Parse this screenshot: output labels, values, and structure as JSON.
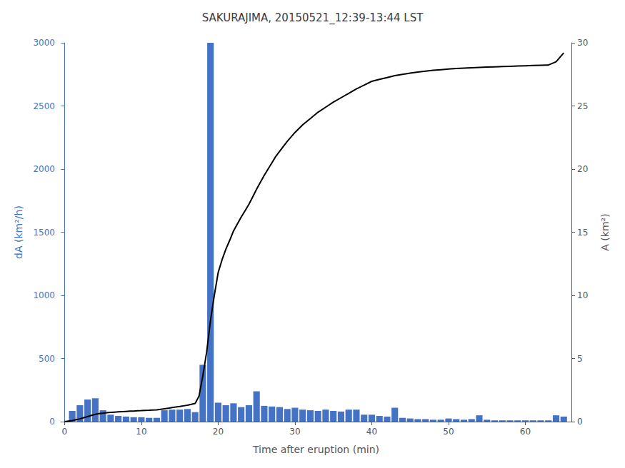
{
  "chart_data": {
    "type": "bar",
    "title": "SAKURAJIMA, 20150521_12:39-13:44 LST",
    "xlabel": "Time after eruption (min)",
    "ylabel": "dA (km²/h)",
    "y2label": "A (km²)",
    "xlim": [
      -0.5,
      66
    ],
    "xticks": [
      0,
      10,
      20,
      30,
      40,
      50,
      60
    ],
    "ylim": [
      0,
      3000
    ],
    "yticks": [
      0,
      500,
      1000,
      1500,
      2000,
      2500,
      3000
    ],
    "y2lim": [
      0,
      30
    ],
    "y2ticks": [
      0,
      5,
      10,
      15,
      20,
      25,
      30
    ],
    "grid": false,
    "series": [
      {
        "type": "bar",
        "color": "#4472C4",
        "x": [
          1,
          2,
          3,
          4,
          5,
          6,
          7,
          8,
          9,
          10,
          11,
          12,
          13,
          14,
          15,
          16,
          17,
          18,
          19,
          20,
          21,
          22,
          23,
          24,
          25,
          26,
          27,
          28,
          29,
          30,
          31,
          32,
          33,
          34,
          35,
          36,
          37,
          38,
          39,
          40,
          41,
          42,
          43,
          44,
          45,
          46,
          47,
          48,
          49,
          50,
          51,
          52,
          53,
          54,
          55,
          56,
          57,
          58,
          59,
          60,
          61,
          62,
          63,
          64,
          65
        ],
        "values": [
          85,
          130,
          175,
          185,
          90,
          55,
          45,
          40,
          35,
          35,
          30,
          30,
          90,
          95,
          95,
          100,
          75,
          450,
          3000,
          150,
          130,
          145,
          115,
          130,
          240,
          125,
          120,
          115,
          100,
          110,
          95,
          90,
          85,
          95,
          85,
          80,
          95,
          95,
          55,
          55,
          45,
          40,
          110,
          30,
          25,
          20,
          20,
          15,
          15,
          25,
          20,
          15,
          20,
          50,
          15,
          10,
          10,
          10,
          10,
          10,
          10,
          10,
          10,
          50,
          40
        ]
      },
      {
        "type": "line",
        "color": "#000000",
        "axis": "y2",
        "x": [
          0,
          0.5,
          1,
          1.5,
          2,
          2.5,
          3,
          3.5,
          4,
          4.5,
          5,
          5.5,
          6,
          6.5,
          7,
          7.5,
          8,
          8.5,
          9,
          9.5,
          10,
          10.5,
          11,
          11.5,
          12,
          12.5,
          13,
          13.5,
          14,
          14.5,
          15,
          15.5,
          16,
          16.5,
          17,
          17.5,
          18,
          18.5,
          19,
          19.5,
          20,
          20.5,
          21,
          21.5,
          22,
          22.5,
          23,
          23.5,
          24,
          24.5,
          25,
          25.5,
          26,
          26.5,
          27,
          27.5,
          28,
          28.5,
          29,
          29.5,
          30,
          31,
          32,
          33,
          34,
          35,
          36,
          37,
          38,
          39,
          40,
          41,
          42,
          43,
          44,
          45,
          46,
          47,
          48,
          49,
          50,
          51,
          52,
          53,
          54,
          55,
          56,
          57,
          58,
          59,
          60,
          61,
          62,
          63,
          64,
          65
        ],
        "values": [
          0,
          0.04,
          0.08,
          0.15,
          0.22,
          0.31,
          0.4,
          0.49,
          0.58,
          0.63,
          0.67,
          0.7,
          0.73,
          0.75,
          0.77,
          0.79,
          0.81,
          0.83,
          0.84,
          0.86,
          0.87,
          0.89,
          0.9,
          0.915,
          0.93,
          0.975,
          1.02,
          1.065,
          1.11,
          1.155,
          1.2,
          1.25,
          1.3,
          1.37,
          1.44,
          2.0,
          3.6,
          5.5,
          8.0,
          10.0,
          11.8,
          12.8,
          13.65,
          14.35,
          15.1,
          15.65,
          16.2,
          16.7,
          17.2,
          17.8,
          18.4,
          18.95,
          19.5,
          20.0,
          20.5,
          21.0,
          21.4,
          21.8,
          22.2,
          22.55,
          22.9,
          23.5,
          24.0,
          24.5,
          24.9,
          25.3,
          25.65,
          26.0,
          26.35,
          26.65,
          26.95,
          27.1,
          27.25,
          27.4,
          27.5,
          27.6,
          27.68,
          27.75,
          27.82,
          27.87,
          27.92,
          27.96,
          27.99,
          28.02,
          28.05,
          28.08,
          28.1,
          28.12,
          28.14,
          28.16,
          28.18,
          28.2,
          28.22,
          28.24,
          28.5,
          29.2
        ]
      }
    ]
  }
}
